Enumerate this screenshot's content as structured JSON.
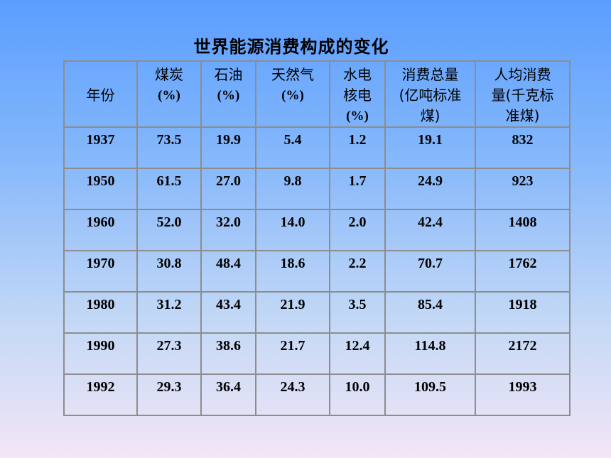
{
  "title": "世界能源消费构成的变化",
  "table": {
    "headers": [
      {
        "lines": [
          "年份"
        ]
      },
      {
        "lines": [
          "煤炭",
          "(%)"
        ]
      },
      {
        "lines": [
          "石油",
          "(%)"
        ]
      },
      {
        "lines": [
          "天然气",
          "(%)"
        ]
      },
      {
        "lines": [
          "水电",
          "核电",
          "(%)"
        ]
      },
      {
        "lines": [
          "消费总量",
          "(亿吨标准",
          "煤)"
        ]
      },
      {
        "lines": [
          "人均消费",
          "量(千克标",
          "准煤)"
        ]
      }
    ],
    "rows": [
      [
        "1937",
        "73.5",
        "19.9",
        "5.4",
        "1.2",
        "19.1",
        "832"
      ],
      [
        "1950",
        "61.5",
        "27.0",
        "9.8",
        "1.7",
        "24.9",
        "923"
      ],
      [
        "1960",
        "52.0",
        "32.0",
        "14.0",
        "2.0",
        "42.4",
        "1408"
      ],
      [
        "1970",
        "30.8",
        "48.4",
        "18.6",
        "2.2",
        "70.7",
        "1762"
      ],
      [
        "1980",
        "31.2",
        "43.4",
        "21.9",
        "3.5",
        "85.4",
        "1918"
      ],
      [
        "1990",
        "27.3",
        "38.6",
        "21.7",
        "12.4",
        "114.8",
        "2172"
      ],
      [
        "1992",
        "29.3",
        "36.4",
        "24.3",
        "10.0",
        "109.5",
        "1993"
      ]
    ]
  }
}
